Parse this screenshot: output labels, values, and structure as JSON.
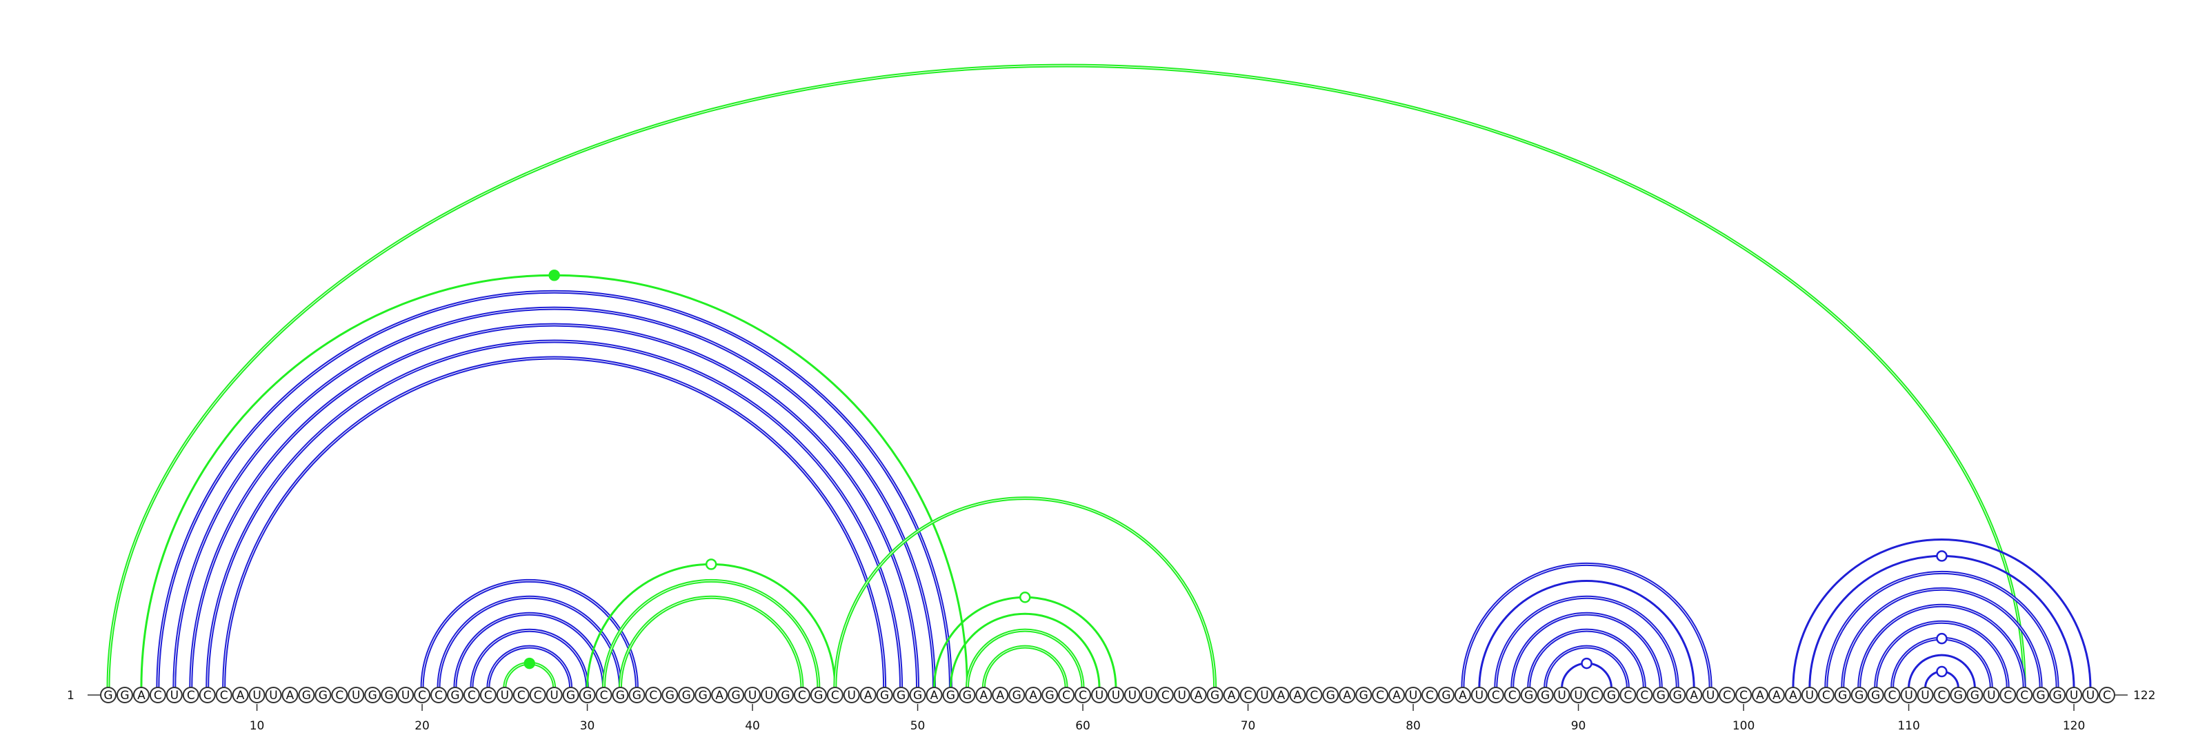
{
  "sequence": "GGACUCCCAUUAGGCUGGUCCGCCUCCUGGCGGCGGGAGUUGCGCUAGGGAGGAAGAGCCUUUUCUAGACUAACGAGCAUCGAUCCGGUUCGCCGGAUCCAAAUCGGGCUUCGGUCCGGUUC",
  "length": 122,
  "start_label": "1",
  "end_label": "122",
  "tick_labels": [
    "10",
    "20",
    "30",
    "40",
    "50",
    "60",
    "70",
    "80",
    "90",
    "100",
    "110",
    "120"
  ],
  "tick_positions": [
    10,
    20,
    30,
    40,
    50,
    60,
    70,
    80,
    90,
    100,
    110,
    120
  ],
  "colors": {
    "blue": "#1f1fd6",
    "green": "#22ee22",
    "base_stroke": "#333333"
  },
  "arcs": [
    {
      "i": 1,
      "j": 117,
      "color": "green",
      "thick": true
    },
    {
      "i": 3,
      "j": 53,
      "color": "green",
      "thick": false
    },
    {
      "i": 4,
      "j": 52,
      "color": "blue",
      "thick": true
    },
    {
      "i": 5,
      "j": 51,
      "color": "blue",
      "thick": true
    },
    {
      "i": 6,
      "j": 50,
      "color": "blue",
      "thick": true
    },
    {
      "i": 7,
      "j": 49,
      "color": "blue",
      "thick": true
    },
    {
      "i": 8,
      "j": 48,
      "color": "blue",
      "thick": true
    },
    {
      "i": 20,
      "j": 33,
      "color": "blue",
      "thick": true
    },
    {
      "i": 21,
      "j": 32,
      "color": "blue",
      "thick": true
    },
    {
      "i": 22,
      "j": 31,
      "color": "blue",
      "thick": true
    },
    {
      "i": 23,
      "j": 30,
      "color": "blue",
      "thick": true
    },
    {
      "i": 24,
      "j": 29,
      "color": "blue",
      "thick": true
    },
    {
      "i": 25,
      "j": 28,
      "color": "green",
      "thick": true
    },
    {
      "i": 30,
      "j": 45,
      "color": "green",
      "thick": false
    },
    {
      "i": 31,
      "j": 44,
      "color": "green",
      "thick": true
    },
    {
      "i": 32,
      "j": 43,
      "color": "green",
      "thick": true
    },
    {
      "i": 45,
      "j": 68,
      "color": "green",
      "thick": true
    },
    {
      "i": 51,
      "j": 62,
      "color": "green",
      "thick": false
    },
    {
      "i": 52,
      "j": 61,
      "color": "green",
      "thick": false
    },
    {
      "i": 53,
      "j": 60,
      "color": "green",
      "thick": true
    },
    {
      "i": 54,
      "j": 59,
      "color": "green",
      "thick": true
    },
    {
      "i": 83,
      "j": 98,
      "color": "blue",
      "thick": true
    },
    {
      "i": 84,
      "j": 97,
      "color": "blue",
      "thick": false
    },
    {
      "i": 85,
      "j": 96,
      "color": "blue",
      "thick": true
    },
    {
      "i": 86,
      "j": 95,
      "color": "blue",
      "thick": true
    },
    {
      "i": 87,
      "j": 94,
      "color": "blue",
      "thick": true
    },
    {
      "i": 88,
      "j": 93,
      "color": "blue",
      "thick": true
    },
    {
      "i": 89,
      "j": 92,
      "color": "blue",
      "thick": false
    },
    {
      "i": 103,
      "j": 121,
      "color": "blue",
      "thick": false
    },
    {
      "i": 104,
      "j": 120,
      "color": "blue",
      "thick": false
    },
    {
      "i": 105,
      "j": 119,
      "color": "blue",
      "thick": true
    },
    {
      "i": 106,
      "j": 118,
      "color": "blue",
      "thick": true
    },
    {
      "i": 107,
      "j": 117,
      "color": "blue",
      "thick": true
    },
    {
      "i": 108,
      "j": 116,
      "color": "blue",
      "thick": true
    },
    {
      "i": 109,
      "j": 115,
      "color": "blue",
      "thick": true
    },
    {
      "i": 110,
      "j": 114,
      "color": "blue",
      "thick": false
    },
    {
      "i": 111,
      "j": 113,
      "color": "blue",
      "thick": false
    }
  ],
  "markers": [
    {
      "arc_i": 3,
      "arc_j": 53,
      "filled": true,
      "color": "green"
    },
    {
      "arc_i": 25,
      "arc_j": 28,
      "filled": true,
      "color": "green"
    },
    {
      "arc_i": 30,
      "arc_j": 45,
      "filled": false,
      "color": "green"
    },
    {
      "arc_i": 51,
      "arc_j": 62,
      "filled": false,
      "color": "green"
    },
    {
      "arc_i": 89,
      "arc_j": 92,
      "filled": false,
      "color": "blue"
    },
    {
      "arc_i": 104,
      "arc_j": 120,
      "filled": false,
      "color": "blue"
    },
    {
      "arc_i": 109,
      "arc_j": 115,
      "filled": false,
      "color": "blue"
    },
    {
      "arc_i": 111,
      "arc_j": 113,
      "filled": false,
      "color": "blue"
    }
  ]
}
